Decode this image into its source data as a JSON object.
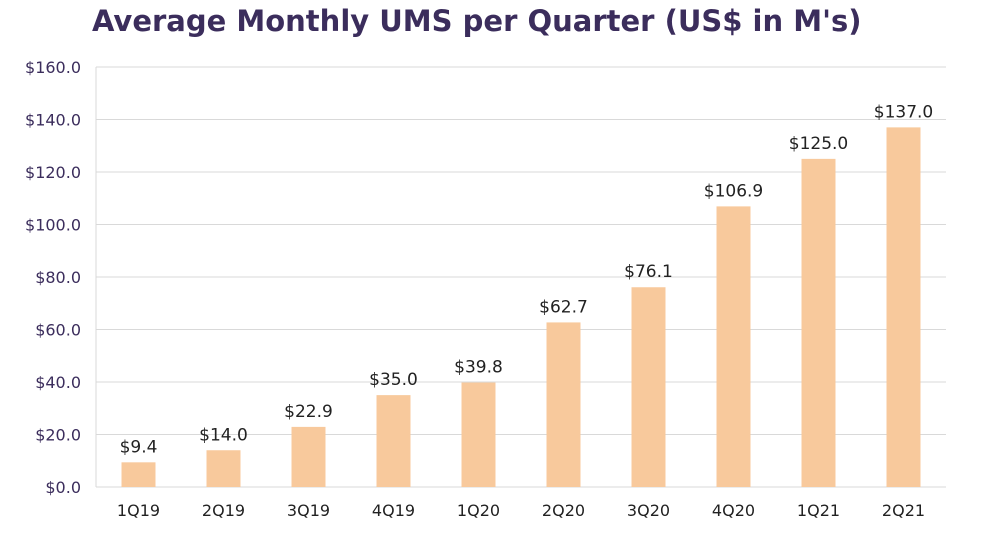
{
  "chart_data": {
    "type": "bar",
    "title": "Average Monthly UMS per Quarter (US$ in M's)",
    "xlabel": "",
    "ylabel": "",
    "categories": [
      "1Q19",
      "2Q19",
      "3Q19",
      "4Q19",
      "1Q20",
      "2Q20",
      "3Q20",
      "4Q20",
      "1Q21",
      "2Q21"
    ],
    "values": [
      9.4,
      14.0,
      22.9,
      35.0,
      39.8,
      62.7,
      76.1,
      106.9,
      125.0,
      137.0
    ],
    "data_labels": [
      "$9.4",
      "$14.0",
      "$22.9",
      "$35.0",
      "$39.8",
      "$62.7",
      "$76.1",
      "$106.9",
      "$125.0",
      "$137.0"
    ],
    "ylim": [
      0,
      160
    ],
    "yticks": [
      0,
      20,
      40,
      60,
      80,
      100,
      120,
      140,
      160
    ],
    "ytick_labels": [
      "$0.0",
      "$20.0",
      "$40.0",
      "$60.0",
      "$80.0",
      "$100.0",
      "$120.0",
      "$140.0",
      "$160.0"
    ],
    "grid": true,
    "legend": "none",
    "colors": {
      "bar": "#f8c99c",
      "grid": "#d9d9d9",
      "title": "#3b2d5c",
      "ytick": "#3b2d5c",
      "label": "#222222"
    }
  }
}
